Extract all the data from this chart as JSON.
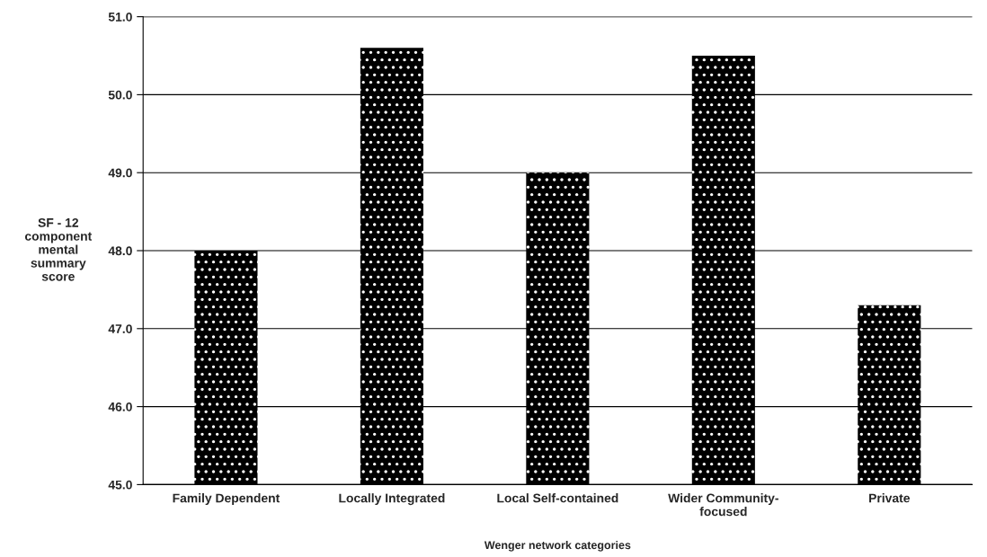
{
  "chart_data": {
    "type": "bar",
    "xlabel": "Wenger network categories",
    "ylabel": "SF - 12\ncomponent\nmental\nsummary\nscore",
    "categories": [
      "Family Dependent",
      "Locally Integrated",
      "Local Self-contained",
      "Wider Community-\nfocused",
      "Private"
    ],
    "values": [
      48.0,
      50.6,
      49.0,
      50.5,
      47.3
    ],
    "color": "#000000",
    "ylim": [
      45,
      51
    ],
    "yticks": [
      {
        "value": 45,
        "label": "45.0"
      },
      {
        "value": 46,
        "label": "46.0"
      },
      {
        "value": 47,
        "label": "47.0"
      },
      {
        "value": 48,
        "label": "48.0"
      },
      {
        "value": 49,
        "label": "49.0"
      },
      {
        "value": 50,
        "label": "50.0"
      },
      {
        "value": 51,
        "label": "51.0"
      }
    ],
    "grid": "y"
  }
}
